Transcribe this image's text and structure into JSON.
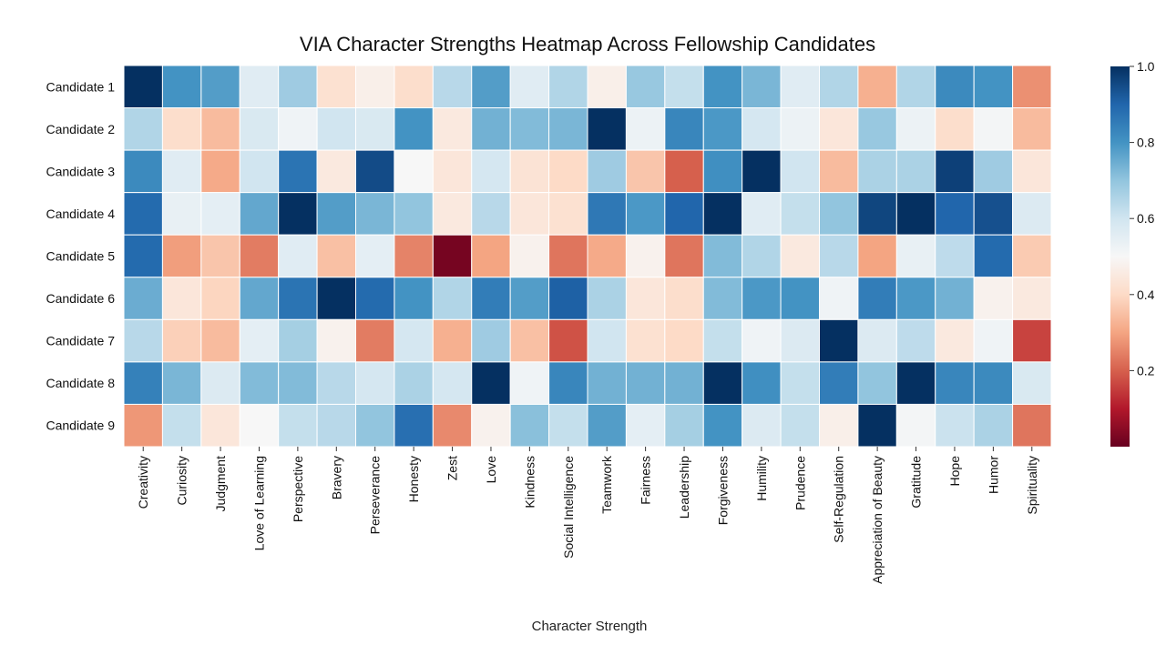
{
  "chart_data": {
    "type": "heatmap",
    "title": "VIA Character Strengths Heatmap Across Fellowship Candidates",
    "xlabel": "Character Strength",
    "ylabel": "",
    "rows": [
      "Candidate 1",
      "Candidate 2",
      "Candidate 3",
      "Candidate 4",
      "Candidate 5",
      "Candidate 6",
      "Candidate 7",
      "Candidate 8",
      "Candidate 9"
    ],
    "columns": [
      "Creativity",
      "Curiosity",
      "Judgment",
      "Love of Learning",
      "Perspective",
      "Bravery",
      "Perseverance",
      "Honesty",
      "Zest",
      "Love",
      "Kindness",
      "Social Intelligence",
      "Teamwork",
      "Fairness",
      "Leadership",
      "Forgiveness",
      "Humility",
      "Prudence",
      "Self-Regulation",
      "Appreciation of Beauty",
      "Gratitude",
      "Hope",
      "Humor",
      "Spirituality"
    ],
    "values": [
      [
        1.0,
        0.8,
        0.78,
        0.56,
        0.68,
        0.42,
        0.47,
        0.41,
        0.64,
        0.78,
        0.56,
        0.65,
        0.47,
        0.69,
        0.62,
        0.8,
        0.73,
        0.56,
        0.65,
        0.32,
        0.65,
        0.82,
        0.8,
        0.27
      ],
      [
        0.65,
        0.41,
        0.34,
        0.58,
        0.52,
        0.6,
        0.58,
        0.8,
        0.45,
        0.74,
        0.72,
        0.73,
        1.0,
        0.53,
        0.83,
        0.79,
        0.59,
        0.53,
        0.44,
        0.69,
        0.53,
        0.41,
        0.51,
        0.34
      ],
      [
        0.82,
        0.56,
        0.31,
        0.6,
        0.87,
        0.45,
        0.95,
        0.5,
        0.44,
        0.59,
        0.43,
        0.4,
        0.68,
        0.36,
        0.2,
        0.81,
        1.0,
        0.6,
        0.34,
        0.66,
        0.66,
        0.97,
        0.68,
        0.44
      ],
      [
        0.89,
        0.54,
        0.55,
        0.76,
        1.0,
        0.78,
        0.73,
        0.7,
        0.45,
        0.64,
        0.44,
        0.42,
        0.86,
        0.79,
        0.9,
        1.0,
        0.56,
        0.62,
        0.7,
        0.96,
        1.0,
        0.9,
        0.94,
        0.57
      ],
      [
        0.89,
        0.29,
        0.36,
        0.24,
        0.56,
        0.35,
        0.55,
        0.25,
        0.02,
        0.3,
        0.48,
        0.23,
        0.31,
        0.48,
        0.23,
        0.72,
        0.65,
        0.45,
        0.64,
        0.3,
        0.54,
        0.63,
        0.89,
        0.37
      ],
      [
        0.75,
        0.44,
        0.39,
        0.76,
        0.87,
        1.0,
        0.89,
        0.8,
        0.65,
        0.85,
        0.78,
        0.91,
        0.66,
        0.44,
        0.41,
        0.72,
        0.79,
        0.8,
        0.52,
        0.85,
        0.79,
        0.74,
        0.48,
        0.45
      ],
      [
        0.64,
        0.38,
        0.34,
        0.55,
        0.67,
        0.48,
        0.24,
        0.59,
        0.32,
        0.68,
        0.35,
        0.18,
        0.6,
        0.42,
        0.4,
        0.62,
        0.52,
        0.57,
        1.0,
        0.57,
        0.63,
        0.45,
        0.52,
        0.16
      ],
      [
        0.84,
        0.73,
        0.57,
        0.72,
        0.72,
        0.64,
        0.59,
        0.66,
        0.59,
        1.0,
        0.52,
        0.83,
        0.74,
        0.74,
        0.74,
        1.0,
        0.81,
        0.62,
        0.85,
        0.7,
        1.0,
        0.83,
        0.82,
        0.58
      ],
      [
        0.28,
        0.62,
        0.44,
        0.5,
        0.62,
        0.64,
        0.7,
        0.88,
        0.26,
        0.48,
        0.71,
        0.62,
        0.78,
        0.55,
        0.67,
        0.8,
        0.57,
        0.62,
        0.47,
        1.0,
        0.51,
        0.61,
        0.66,
        0.23
      ]
    ],
    "vmin": 0.0,
    "vmax": 1.0,
    "colormap": "RdBu",
    "colorbar_ticks": [
      "0.2",
      "0.4",
      "0.6",
      "0.8",
      "1.0"
    ],
    "colorbar_tick_values": [
      0.2,
      0.4,
      0.6,
      0.8,
      1.0
    ],
    "gridlines": true,
    "grid_color": "#ffffff"
  }
}
